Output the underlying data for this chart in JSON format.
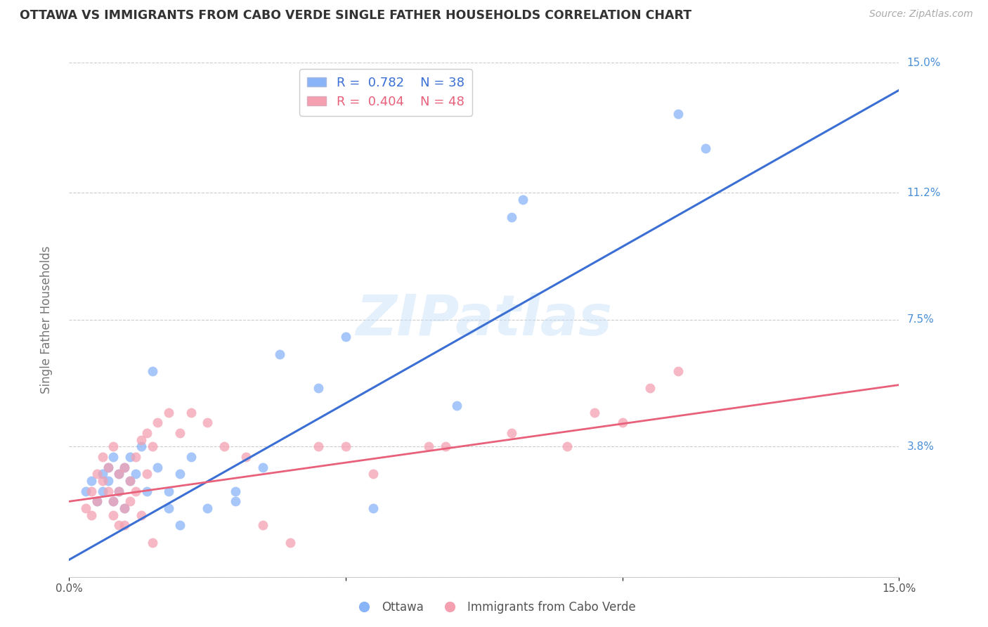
{
  "title": "OTTAWA VS IMMIGRANTS FROM CABO VERDE SINGLE FATHER HOUSEHOLDS CORRELATION CHART",
  "source": "Source: ZipAtlas.com",
  "ylabel": "Single Father Households",
  "xlim": [
    0,
    0.15
  ],
  "ylim": [
    0,
    0.15
  ],
  "grid_color": "#cccccc",
  "background_color": "#ffffff",
  "watermark": "ZIPatlas",
  "legend_blue_r": "0.782",
  "legend_blue_n": "38",
  "legend_pink_r": "0.404",
  "legend_pink_n": "48",
  "blue_color": "#8ab4f8",
  "pink_color": "#f4a0b0",
  "line_blue_color": "#3b6fd4",
  "line_pink_color": "#e8607a",
  "ytick_color": "#4a90d9",
  "xtick_color": "#555555",
  "blue_scatter": [
    [
      0.003,
      0.025
    ],
    [
      0.004,
      0.028
    ],
    [
      0.005,
      0.022
    ],
    [
      0.006,
      0.03
    ],
    [
      0.006,
      0.025
    ],
    [
      0.007,
      0.032
    ],
    [
      0.007,
      0.028
    ],
    [
      0.008,
      0.035
    ],
    [
      0.008,
      0.022
    ],
    [
      0.009,
      0.03
    ],
    [
      0.009,
      0.025
    ],
    [
      0.01,
      0.032
    ],
    [
      0.01,
      0.02
    ],
    [
      0.011,
      0.035
    ],
    [
      0.011,
      0.028
    ],
    [
      0.012,
      0.03
    ],
    [
      0.013,
      0.038
    ],
    [
      0.014,
      0.025
    ],
    [
      0.015,
      0.06
    ],
    [
      0.016,
      0.032
    ],
    [
      0.018,
      0.025
    ],
    [
      0.018,
      0.02
    ],
    [
      0.02,
      0.03
    ],
    [
      0.02,
      0.015
    ],
    [
      0.022,
      0.035
    ],
    [
      0.025,
      0.02
    ],
    [
      0.03,
      0.025
    ],
    [
      0.03,
      0.022
    ],
    [
      0.035,
      0.032
    ],
    [
      0.038,
      0.065
    ],
    [
      0.045,
      0.055
    ],
    [
      0.05,
      0.07
    ],
    [
      0.055,
      0.02
    ],
    [
      0.07,
      0.05
    ],
    [
      0.08,
      0.105
    ],
    [
      0.082,
      0.11
    ],
    [
      0.11,
      0.135
    ],
    [
      0.115,
      0.125
    ]
  ],
  "pink_scatter": [
    [
      0.003,
      0.02
    ],
    [
      0.004,
      0.025
    ],
    [
      0.004,
      0.018
    ],
    [
      0.005,
      0.03
    ],
    [
      0.005,
      0.022
    ],
    [
      0.006,
      0.028
    ],
    [
      0.006,
      0.035
    ],
    [
      0.007,
      0.025
    ],
    [
      0.007,
      0.032
    ],
    [
      0.008,
      0.038
    ],
    [
      0.008,
      0.022
    ],
    [
      0.008,
      0.018
    ],
    [
      0.009,
      0.03
    ],
    [
      0.009,
      0.025
    ],
    [
      0.009,
      0.015
    ],
    [
      0.01,
      0.032
    ],
    [
      0.01,
      0.02
    ],
    [
      0.01,
      0.015
    ],
    [
      0.011,
      0.028
    ],
    [
      0.011,
      0.022
    ],
    [
      0.012,
      0.035
    ],
    [
      0.012,
      0.025
    ],
    [
      0.013,
      0.04
    ],
    [
      0.013,
      0.018
    ],
    [
      0.014,
      0.042
    ],
    [
      0.014,
      0.03
    ],
    [
      0.015,
      0.038
    ],
    [
      0.015,
      0.01
    ],
    [
      0.016,
      0.045
    ],
    [
      0.018,
      0.048
    ],
    [
      0.02,
      0.042
    ],
    [
      0.022,
      0.048
    ],
    [
      0.025,
      0.045
    ],
    [
      0.028,
      0.038
    ],
    [
      0.032,
      0.035
    ],
    [
      0.035,
      0.015
    ],
    [
      0.04,
      0.01
    ],
    [
      0.045,
      0.038
    ],
    [
      0.05,
      0.038
    ],
    [
      0.055,
      0.03
    ],
    [
      0.065,
      0.038
    ],
    [
      0.068,
      0.038
    ],
    [
      0.08,
      0.042
    ],
    [
      0.09,
      0.038
    ],
    [
      0.095,
      0.048
    ],
    [
      0.1,
      0.045
    ],
    [
      0.105,
      0.055
    ],
    [
      0.11,
      0.06
    ]
  ],
  "blue_line_x": [
    0.0,
    0.15
  ],
  "blue_line_y": [
    0.005,
    0.142
  ],
  "pink_line_x": [
    0.0,
    0.15
  ],
  "pink_line_y": [
    0.022,
    0.056
  ]
}
